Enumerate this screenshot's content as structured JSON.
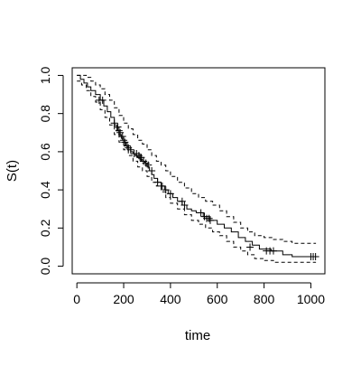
{
  "chart_data": {
    "type": "line",
    "title": "",
    "xlabel": "time",
    "ylabel": "S(t)",
    "xlim": [
      -20,
      1060
    ],
    "ylim": [
      -0.04,
      1.04
    ],
    "xticks": [
      0,
      200,
      400,
      600,
      800,
      1000
    ],
    "yticks": [
      0.0,
      0.2,
      0.4,
      0.6,
      0.8,
      1.0
    ],
    "xtick_labels": [
      "0",
      "200",
      "400",
      "600",
      "800",
      "1000"
    ],
    "ytick_labels": [
      "0.0",
      "0.2",
      "0.4",
      "0.6",
      "0.8",
      "1.0"
    ],
    "grid": false,
    "legend": "none",
    "line_color": "#000000",
    "series": [
      {
        "style": "solid-step",
        "x": [
          0,
          15,
          30,
          45,
          60,
          80,
          100,
          115,
          130,
          145,
          160,
          170,
          180,
          190,
          200,
          210,
          220,
          230,
          240,
          250,
          260,
          270,
          280,
          290,
          300,
          310,
          320,
          330,
          345,
          360,
          375,
          390,
          410,
          430,
          450,
          470,
          490,
          510,
          540,
          570,
          600,
          630,
          660,
          690,
          720,
          750,
          780,
          830,
          880,
          920,
          960,
          1022
        ],
        "y": [
          1.0,
          0.98,
          0.96,
          0.94,
          0.92,
          0.9,
          0.87,
          0.84,
          0.81,
          0.78,
          0.74,
          0.71,
          0.69,
          0.67,
          0.65,
          0.63,
          0.62,
          0.6,
          0.59,
          0.58,
          0.57,
          0.56,
          0.55,
          0.54,
          0.52,
          0.5,
          0.48,
          0.46,
          0.44,
          0.42,
          0.4,
          0.38,
          0.36,
          0.34,
          0.32,
          0.3,
          0.29,
          0.28,
          0.26,
          0.24,
          0.22,
          0.2,
          0.18,
          0.15,
          0.13,
          0.11,
          0.09,
          0.08,
          0.06,
          0.05,
          0.05,
          0.05
        ]
      },
      {
        "style": "dashed-step",
        "x": [
          0,
          20,
          40,
          60,
          80,
          100,
          120,
          140,
          160,
          180,
          200,
          220,
          240,
          260,
          280,
          300,
          320,
          340,
          360,
          380,
          400,
          430,
          460,
          490,
          520,
          550,
          580,
          610,
          640,
          670,
          700,
          730,
          760,
          800,
          840,
          880,
          920,
          960,
          1022
        ],
        "y": [
          1.0,
          1.0,
          0.99,
          0.97,
          0.95,
          0.93,
          0.9,
          0.87,
          0.83,
          0.79,
          0.75,
          0.72,
          0.69,
          0.66,
          0.64,
          0.61,
          0.58,
          0.55,
          0.53,
          0.5,
          0.47,
          0.44,
          0.41,
          0.38,
          0.36,
          0.34,
          0.32,
          0.29,
          0.26,
          0.23,
          0.2,
          0.18,
          0.16,
          0.15,
          0.14,
          0.13,
          0.12,
          0.12,
          0.12
        ]
      },
      {
        "style": "dashed-step",
        "x": [
          0,
          20,
          40,
          60,
          80,
          100,
          120,
          140,
          160,
          180,
          200,
          220,
          240,
          260,
          280,
          300,
          320,
          340,
          360,
          380,
          400,
          430,
          460,
          490,
          520,
          550,
          580,
          610,
          640,
          670,
          700,
          730,
          760,
          800,
          840,
          880,
          920,
          960,
          1022
        ],
        "y": [
          0.97,
          0.95,
          0.92,
          0.89,
          0.86,
          0.82,
          0.78,
          0.74,
          0.69,
          0.65,
          0.61,
          0.58,
          0.55,
          0.52,
          0.5,
          0.47,
          0.44,
          0.42,
          0.39,
          0.36,
          0.33,
          0.3,
          0.27,
          0.24,
          0.22,
          0.2,
          0.18,
          0.16,
          0.13,
          0.1,
          0.08,
          0.06,
          0.04,
          0.03,
          0.02,
          0.02,
          0.02,
          0.02,
          0.02
        ]
      },
      {
        "style": "censor-marks",
        "x": [
          95,
          110,
          160,
          175,
          180,
          185,
          195,
          200,
          205,
          215,
          220,
          230,
          245,
          255,
          265,
          270,
          275,
          285,
          295,
          305,
          320,
          345,
          365,
          380,
          400,
          450,
          460,
          530,
          545,
          555,
          565,
          570,
          740,
          810,
          825,
          840,
          1000,
          1010,
          1020
        ],
        "y": [
          0.87,
          0.87,
          0.75,
          0.73,
          0.71,
          0.7,
          0.68,
          0.66,
          0.65,
          0.63,
          0.62,
          0.61,
          0.59,
          0.59,
          0.58,
          0.57,
          0.57,
          0.55,
          0.54,
          0.53,
          0.5,
          0.44,
          0.42,
          0.4,
          0.38,
          0.34,
          0.32,
          0.28,
          0.26,
          0.25,
          0.25,
          0.24,
          0.1,
          0.08,
          0.08,
          0.08,
          0.05,
          0.05,
          0.05
        ]
      }
    ]
  }
}
